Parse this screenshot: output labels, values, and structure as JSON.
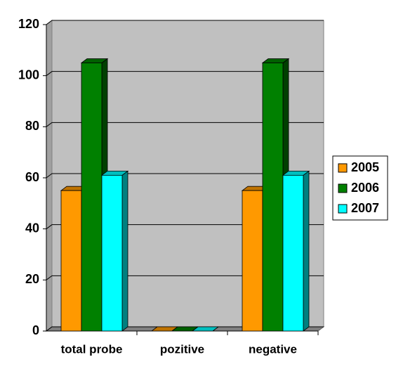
{
  "chart_data": {
    "type": "bar3d",
    "categories": [
      "total probe",
      "pozitive",
      "negative"
    ],
    "series": [
      {
        "name": "2005",
        "color": "#ff9900",
        "values": [
          55,
          0,
          55
        ]
      },
      {
        "name": "2006",
        "color": "#008000",
        "values": [
          105,
          0,
          105
        ]
      },
      {
        "name": "2007",
        "color": "#00ffff",
        "values": [
          61,
          0,
          61
        ]
      }
    ],
    "ylim": [
      0,
      120
    ],
    "yticks": [
      0,
      20,
      40,
      60,
      80,
      100,
      120
    ],
    "grid": true,
    "legend": "right"
  }
}
